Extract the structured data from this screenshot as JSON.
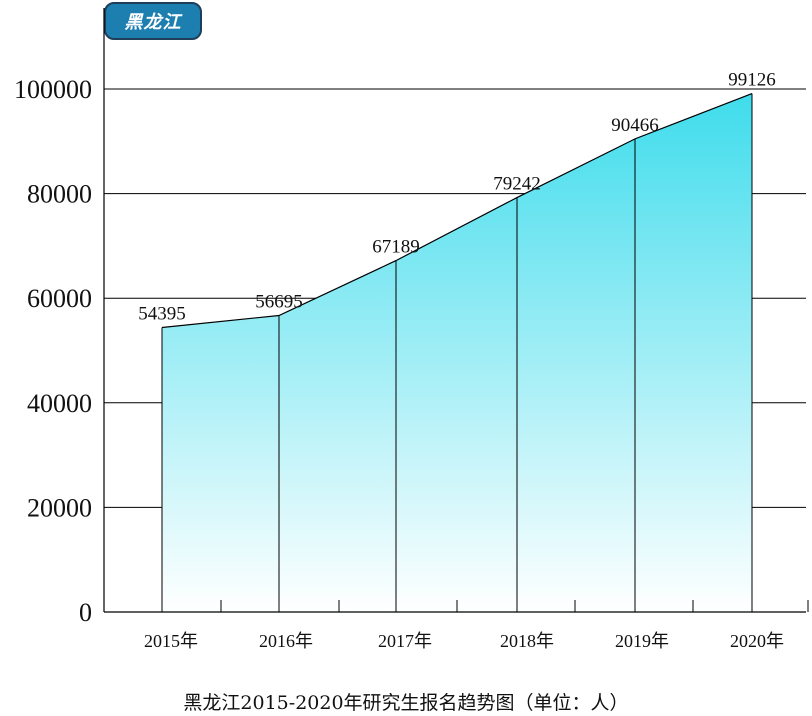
{
  "badge": {
    "label": "黑龙江"
  },
  "caption": "黑龙江2015-2020年研究生报名趋势图（单位：人）",
  "colors": {
    "fill_top": "#3fdcec",
    "fill_bottom": "#ffffff",
    "line": "#000000",
    "badge": "#1d7eb0"
  },
  "chart_data": {
    "type": "area",
    "title": "黑龙江2015-2020年研究生报名趋势图（单位：人）",
    "categories": [
      "2015年",
      "2016年",
      "2017年",
      "2018年",
      "2019年",
      "2020年"
    ],
    "values": [
      54395,
      56695,
      67189,
      79242,
      90466,
      99126
    ],
    "data_labels": [
      "54395",
      "56695",
      "67189",
      "79242",
      "90466",
      "99126"
    ],
    "yticks": [
      0,
      20000,
      40000,
      60000,
      80000,
      100000
    ],
    "ytick_labels": [
      "0",
      "20000",
      "40000",
      "60000",
      "80000",
      "100000"
    ],
    "ylim": [
      0,
      100000
    ],
    "grid": true,
    "legend": "none"
  }
}
